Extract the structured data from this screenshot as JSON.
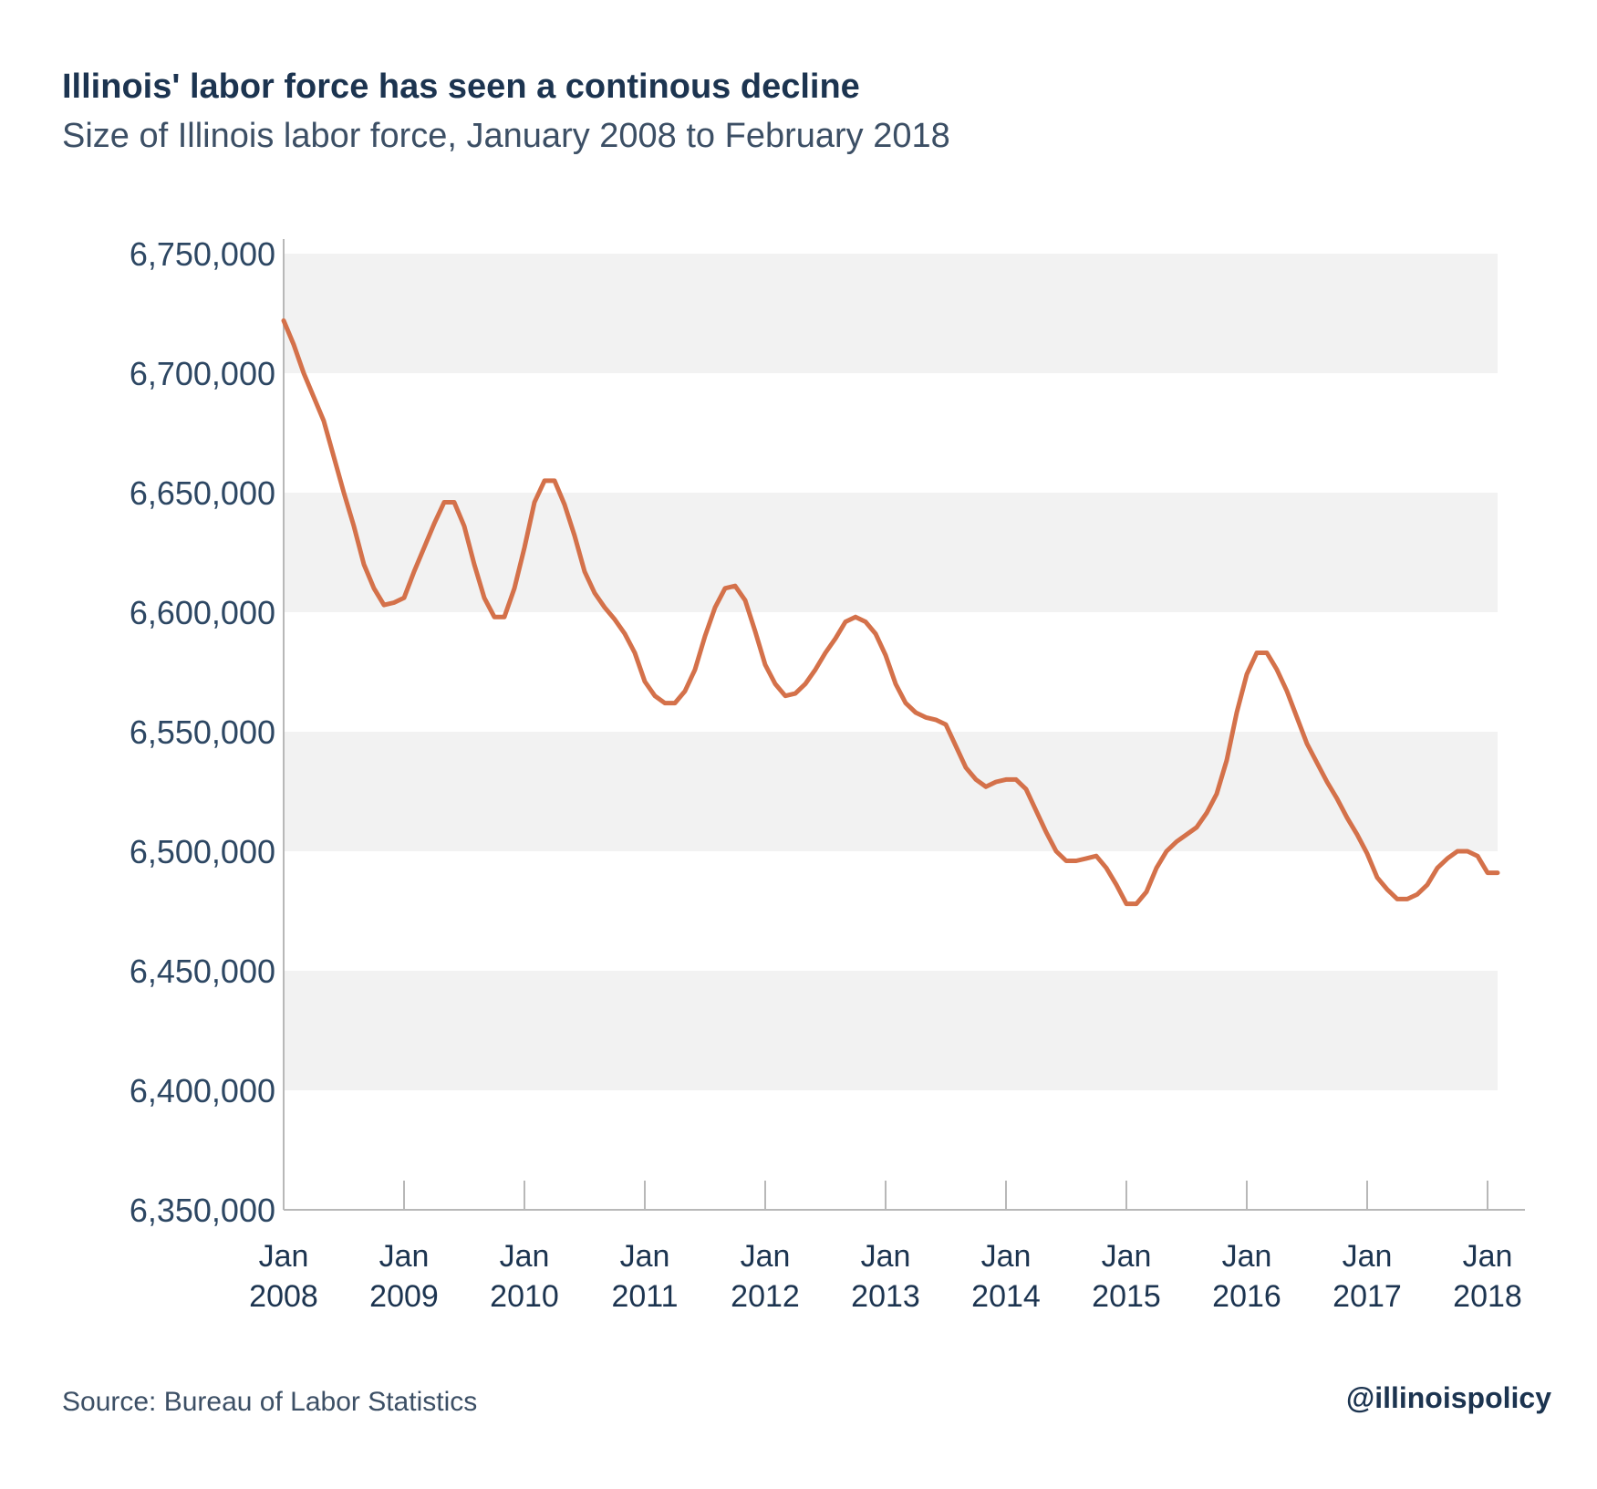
{
  "chart_data": {
    "type": "line",
    "title": "Illinois' labor force has seen a continous decline",
    "subtitle": "Size of Illinois labor force, January 2008 to February 2018",
    "ylim": [
      6350000,
      6760000
    ],
    "y_ticks": [
      {
        "value": 6750000,
        "label": "6,750,000"
      },
      {
        "value": 6700000,
        "label": "6,700,000"
      },
      {
        "value": 6650000,
        "label": "6,650,000"
      },
      {
        "value": 6600000,
        "label": "6,600,000"
      },
      {
        "value": 6550000,
        "label": "6,550,000"
      },
      {
        "value": 6500000,
        "label": "6,500,000"
      },
      {
        "value": 6450000,
        "label": "6,450,000"
      },
      {
        "value": 6400000,
        "label": "6,400,000"
      },
      {
        "value": 6350000,
        "label": "6,350,000"
      }
    ],
    "x_ticks": [
      {
        "date": "2008-01",
        "month": "Jan",
        "year": "2008"
      },
      {
        "date": "2009-01",
        "month": "Jan",
        "year": "2009"
      },
      {
        "date": "2010-01",
        "month": "Jan",
        "year": "2010"
      },
      {
        "date": "2011-01",
        "month": "Jan",
        "year": "2011"
      },
      {
        "date": "2012-01",
        "month": "Jan",
        "year": "2012"
      },
      {
        "date": "2013-01",
        "month": "Jan",
        "year": "2013"
      },
      {
        "date": "2014-01",
        "month": "Jan",
        "year": "2014"
      },
      {
        "date": "2015-01",
        "month": "Jan",
        "year": "2015"
      },
      {
        "date": "2016-01",
        "month": "Jan",
        "year": "2016"
      },
      {
        "date": "2017-01",
        "month": "Jan",
        "year": "2017"
      },
      {
        "date": "2018-01",
        "month": "Jan",
        "year": "2018"
      }
    ],
    "grid": "alternating horizontal bands",
    "series_color": "#d4714a",
    "band_color": "#f2f2f2",
    "series": [
      {
        "x": [
          "2008-01",
          "2008-02",
          "2008-03",
          "2008-04",
          "2008-05",
          "2008-06",
          "2008-07",
          "2008-08",
          "2008-09",
          "2008-10",
          "2008-11",
          "2008-12",
          "2009-01",
          "2009-02",
          "2009-03",
          "2009-04",
          "2009-05",
          "2009-06",
          "2009-07",
          "2009-08",
          "2009-09",
          "2009-10",
          "2009-11",
          "2009-12",
          "2010-01",
          "2010-02",
          "2010-03",
          "2010-04",
          "2010-05",
          "2010-06",
          "2010-07",
          "2010-08",
          "2010-09",
          "2010-10",
          "2010-11",
          "2010-12",
          "2011-01",
          "2011-02",
          "2011-03",
          "2011-04",
          "2011-05",
          "2011-06",
          "2011-07",
          "2011-08",
          "2011-09",
          "2011-10",
          "2011-11",
          "2011-12",
          "2012-01",
          "2012-02",
          "2012-03",
          "2012-04",
          "2012-05",
          "2012-06",
          "2012-07",
          "2012-08",
          "2012-09",
          "2012-10",
          "2012-11",
          "2012-12",
          "2013-01",
          "2013-02",
          "2013-03",
          "2013-04",
          "2013-05",
          "2013-06",
          "2013-07",
          "2013-08",
          "2013-09",
          "2013-10",
          "2013-11",
          "2013-12",
          "2014-01",
          "2014-02",
          "2014-03",
          "2014-04",
          "2014-05",
          "2014-06",
          "2014-07",
          "2014-08",
          "2014-09",
          "2014-10",
          "2014-11",
          "2014-12",
          "2015-01",
          "2015-02",
          "2015-03",
          "2015-04",
          "2015-05",
          "2015-06",
          "2015-07",
          "2015-08",
          "2015-09",
          "2015-10",
          "2015-11",
          "2015-12",
          "2016-01",
          "2016-02",
          "2016-03",
          "2016-04",
          "2016-05",
          "2016-06",
          "2016-07",
          "2016-08",
          "2016-09",
          "2016-10",
          "2016-11",
          "2016-12",
          "2017-01",
          "2017-02",
          "2017-03",
          "2017-04",
          "2017-05",
          "2017-06",
          "2017-07",
          "2017-08",
          "2017-09",
          "2017-10",
          "2017-11",
          "2017-12",
          "2018-01",
          "2018-02"
        ],
        "values": [
          6722000,
          6712000,
          6700000,
          6690000,
          6680000,
          6665000,
          6650000,
          6636000,
          6620000,
          6610000,
          6603000,
          6604000,
          6606000,
          6617000,
          6627000,
          6637000,
          6646000,
          6646000,
          6636000,
          6620000,
          6606000,
          6598000,
          6598000,
          6610000,
          6627000,
          6646000,
          6655000,
          6655000,
          6645000,
          6632000,
          6617000,
          6608000,
          6602000,
          6597000,
          6591000,
          6583000,
          6571000,
          6565000,
          6562000,
          6562000,
          6567000,
          6576000,
          6590000,
          6602000,
          6610000,
          6611000,
          6605000,
          6592000,
          6578000,
          6570000,
          6565000,
          6566000,
          6570000,
          6576000,
          6583000,
          6589000,
          6596000,
          6598000,
          6596000,
          6591000,
          6582000,
          6570000,
          6562000,
          6558000,
          6556000,
          6555000,
          6553000,
          6544000,
          6535000,
          6530000,
          6527000,
          6529000,
          6530000,
          6530000,
          6526000,
          6517000,
          6508000,
          6500000,
          6496000,
          6496000,
          6497000,
          6498000,
          6493000,
          6486000,
          6478000,
          6478000,
          6483000,
          6493000,
          6500000,
          6504000,
          6507000,
          6510000,
          6516000,
          6524000,
          6538000,
          6558000,
          6574000,
          6583000,
          6583000,
          6576000,
          6567000,
          6556000,
          6545000,
          6537000,
          6529000,
          6522000,
          6514000,
          6507000,
          6499000,
          6489000,
          6484000,
          6480000,
          6480000,
          6482000,
          6486000,
          6493000,
          6497000,
          6500000,
          6500000,
          6498000,
          6491000,
          6491000
        ]
      }
    ]
  },
  "footer": {
    "source": "Source: Bureau of Labor Statistics",
    "handle": "@illinoispolicy"
  }
}
